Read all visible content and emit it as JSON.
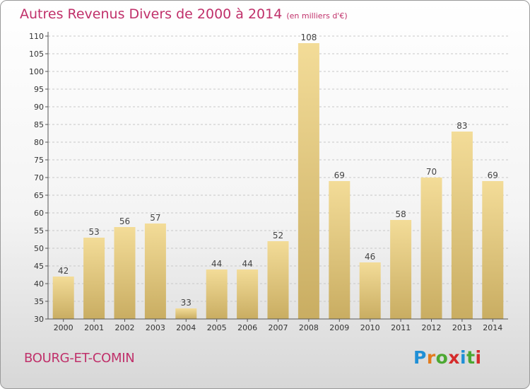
{
  "header": {
    "title": "Autres Revenus Divers de 2000 à 2014",
    "unit": "(en milliers d'€)"
  },
  "footer": {
    "place": "BOURG-ET-COMIN",
    "brand": "Proxiti"
  },
  "colors": {
    "title": "#c0306a",
    "bar_light": "#f3dc98",
    "bar_dark": "#c9ad62",
    "brand": [
      "#1f8fd6",
      "#e27b1e",
      "#4ca832",
      "#d52b2b",
      "#1f8fd6",
      "#4ca832",
      "#d52b2b"
    ]
  },
  "chart_data": {
    "type": "bar",
    "categories": [
      "2000",
      "2001",
      "2002",
      "2003",
      "2004",
      "2005",
      "2006",
      "2007",
      "2008",
      "2009",
      "2010",
      "2011",
      "2012",
      "2013",
      "2014"
    ],
    "values": [
      42,
      53,
      56,
      57,
      33,
      44,
      44,
      52,
      108,
      69,
      46,
      58,
      70,
      83,
      69
    ],
    "ylim": [
      30,
      110
    ],
    "yticks": [
      30,
      35,
      40,
      45,
      50,
      55,
      60,
      65,
      70,
      75,
      80,
      85,
      90,
      95,
      100,
      105,
      110
    ],
    "grid": "horizontal dashed",
    "title": "Autres Revenus Divers de 2000 à 2014",
    "xlabel": "",
    "ylabel": ""
  }
}
